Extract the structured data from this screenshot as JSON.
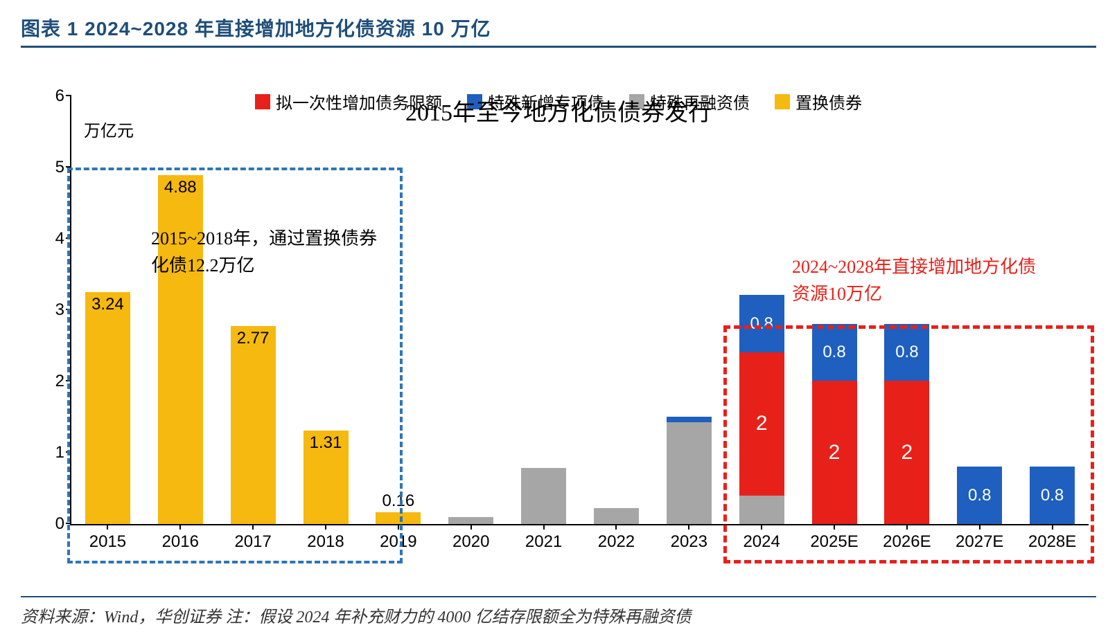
{
  "figure_label": "图表 1   2024~2028 年直接增加地方化债资源 10 万亿",
  "chart": {
    "type": "stacked-bar",
    "title": "2015年至今地方化债债券发行",
    "y_unit": "万亿元",
    "ylim": [
      0,
      6
    ],
    "ytick_step": 1,
    "yticks": [
      0,
      1,
      2,
      3,
      4,
      5,
      6
    ],
    "background_color": "#ffffff",
    "axis_color": "#000000",
    "title_fontsize": 34,
    "label_fontsize": 24,
    "categories": [
      "2015",
      "2016",
      "2017",
      "2018",
      "2019",
      "2020",
      "2021",
      "2022",
      "2023",
      "2024",
      "2025E",
      "2026E",
      "2027E",
      "2028E"
    ],
    "series_colors": {
      "placeholder_increase": "#e8201a",
      "special_new": "#1f5fbf",
      "special_refin": "#a6a6a6",
      "replacement": "#f6b90f"
    },
    "series_names": {
      "placeholder_increase": "拟一次性增加债务限额",
      "special_new": "特殊新增专项债",
      "special_refin": "特殊再融资债",
      "replacement": "置换债券"
    },
    "legend_order": [
      "placeholder_increase",
      "special_new",
      "special_refin",
      "replacement"
    ],
    "stack_order": [
      "replacement",
      "special_refin",
      "placeholder_increase",
      "special_new"
    ],
    "data": {
      "2015": {
        "replacement": 3.24
      },
      "2016": {
        "replacement": 4.88
      },
      "2017": {
        "replacement": 2.77
      },
      "2018": {
        "replacement": 1.31
      },
      "2019": {
        "replacement": 0.16
      },
      "2020": {
        "special_refin": 0.1
      },
      "2021": {
        "special_refin": 0.78
      },
      "2022": {
        "special_refin": 0.22
      },
      "2023": {
        "special_new": 0.08,
        "special_refin": 1.42
      },
      "2024": {
        "placeholder_increase": 2,
        "special_new": 0.8,
        "special_refin": 0.4
      },
      "2025E": {
        "placeholder_increase": 2,
        "special_new": 0.8
      },
      "2026E": {
        "placeholder_increase": 2,
        "special_new": 0.8
      },
      "2027E": {
        "special_new": 0.8
      },
      "2028E": {
        "special_new": 0.8
      }
    },
    "value_labels": {
      "2015": {
        "replacement": "3.24"
      },
      "2016": {
        "replacement": "4.88"
      },
      "2017": {
        "replacement": "2.77"
      },
      "2018": {
        "replacement": "1.31"
      },
      "2019": {
        "replacement": "0.16"
      },
      "2024": {
        "placeholder_increase": "2",
        "special_new": "0.8"
      },
      "2025E": {
        "placeholder_increase": "2",
        "special_new": "0.8"
      },
      "2026E": {
        "placeholder_increase": "2",
        "special_new": "0.8"
      },
      "2027E": {
        "special_new": "0.8"
      },
      "2028E": {
        "special_new": "0.8"
      }
    },
    "label_placement": {
      "2015": {
        "replacement": "below-top"
      },
      "2016": {
        "replacement": "below-top"
      },
      "2017": {
        "replacement": "below-top"
      },
      "2018": {
        "replacement": "below-top"
      },
      "2019": {
        "replacement": "above"
      },
      "2024": {
        "placeholder_increase": "inside",
        "special_new": "inside"
      },
      "2025E": {
        "placeholder_increase": "inside",
        "special_new": "inside"
      },
      "2026E": {
        "placeholder_increase": "inside",
        "special_new": "inside"
      },
      "2027E": {
        "special_new": "inside"
      },
      "2028E": {
        "special_new": "inside"
      }
    },
    "annotations": {
      "blue_box": {
        "text": "2015~2018年，通过置换债券化债12.2万亿",
        "color": "#2e75b6",
        "range": [
          "2015",
          "2019"
        ],
        "y_top": 5.0,
        "extends_below_axis": true
      },
      "red_box": {
        "text": "2024~2028年直接增加地方化债资源10万亿",
        "color": "#e8201a",
        "range": [
          "2024",
          "2028E"
        ],
        "y_top": 2.8,
        "extends_below_axis": true
      }
    }
  },
  "source_note": "资料来源：Wind，华创证券   注：假设 2024 年补充财力的 4000 亿结存限额全为特殊再融资债"
}
